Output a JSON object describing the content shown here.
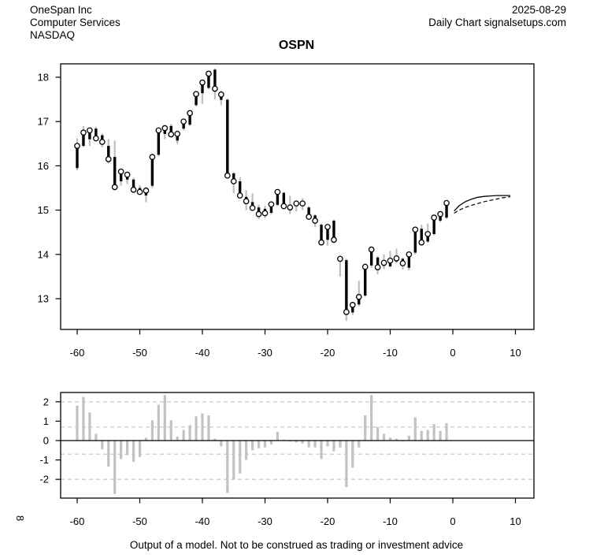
{
  "header": {
    "company": "OneSpan Inc",
    "industry": "Computer Services",
    "exchange": "NASDAQ",
    "date": "2025-08-29",
    "chart_type": "Daily Chart signalsetups.com"
  },
  "title": "OSPN",
  "caption": "Output of a model. Not to be construed as trading or investment advice",
  "side_label": "8",
  "colors": {
    "bar_black": "#000000",
    "range_gray": "#bebebe",
    "oscillator_gray": "#c2c2c2",
    "grid_dash_gray": "#cccccc",
    "text": "#000000",
    "background": "#ffffff"
  },
  "chart_data": [
    {
      "type": "bar",
      "subtype": "ohlc-close-marker",
      "panel": "price",
      "title": "OSPN",
      "xlabel": "",
      "ylabel": "",
      "xlim": [
        -62.5,
        13
      ],
      "ylim": [
        12.3,
        18.3
      ],
      "x_ticks": [
        -60,
        -50,
        -40,
        -30,
        -20,
        -10,
        0,
        10
      ],
      "y_ticks": [
        13,
        14,
        15,
        16,
        17,
        18
      ],
      "grid": "off",
      "columns": [
        "t",
        "open",
        "high",
        "low",
        "close"
      ],
      "bars": [
        [
          -60,
          15.95,
          16.62,
          15.9,
          16.45
        ],
        [
          -59,
          16.45,
          16.9,
          16.42,
          16.75
        ],
        [
          -58,
          16.6,
          16.87,
          16.45,
          16.8
        ],
        [
          -57,
          16.84,
          16.88,
          16.55,
          16.62
        ],
        [
          -56,
          16.69,
          16.73,
          16.42,
          16.54
        ],
        [
          -55,
          16.45,
          16.6,
          16.05,
          16.15
        ],
        [
          -54,
          16.2,
          16.57,
          15.45,
          15.52
        ],
        [
          -53,
          15.65,
          15.92,
          15.55,
          15.87
        ],
        [
          -52,
          15.69,
          15.86,
          15.59,
          15.8
        ],
        [
          -51,
          15.69,
          15.73,
          15.4,
          15.46
        ],
        [
          -50,
          15.5,
          15.56,
          15.35,
          15.41
        ],
        [
          -49,
          15.33,
          15.52,
          15.18,
          15.44
        ],
        [
          -48,
          15.55,
          16.25,
          15.5,
          16.2
        ],
        [
          -47,
          16.25,
          16.84,
          16.22,
          16.8
        ],
        [
          -46,
          16.72,
          16.9,
          16.6,
          16.85
        ],
        [
          -45,
          16.9,
          16.94,
          16.65,
          16.71
        ],
        [
          -44,
          16.57,
          16.8,
          16.5,
          16.72
        ],
        [
          -43,
          16.84,
          17.05,
          16.8,
          17.0
        ],
        [
          -42,
          16.93,
          17.25,
          16.9,
          17.19
        ],
        [
          -41,
          17.37,
          17.67,
          17.34,
          17.62
        ],
        [
          -40,
          17.64,
          17.91,
          17.4,
          17.88
        ],
        [
          -39,
          17.76,
          18.11,
          17.73,
          18.08
        ],
        [
          -38,
          18.17,
          18.2,
          17.5,
          17.74
        ],
        [
          -37,
          17.49,
          17.7,
          17.37,
          17.61
        ],
        [
          -36,
          17.49,
          17.52,
          15.74,
          15.78
        ],
        [
          -35,
          15.83,
          15.86,
          15.38,
          15.65
        ],
        [
          -34,
          15.65,
          15.74,
          15.28,
          15.33
        ],
        [
          -33,
          15.3,
          15.45,
          15.0,
          15.2
        ],
        [
          -32,
          15.18,
          15.38,
          15.02,
          15.05
        ],
        [
          -31,
          15.06,
          15.12,
          14.79,
          14.91
        ],
        [
          -30,
          15.03,
          15.1,
          14.82,
          14.93
        ],
        [
          -29,
          14.94,
          15.18,
          14.9,
          15.13
        ],
        [
          -28,
          15.12,
          15.44,
          15.09,
          15.41
        ],
        [
          -27,
          15.39,
          15.41,
          15.06,
          15.09
        ],
        [
          -26,
          15.12,
          15.32,
          14.91,
          15.06
        ],
        [
          -25,
          15.09,
          15.21,
          14.97,
          15.15
        ],
        [
          -24,
          15.1,
          15.27,
          15.0,
          15.15
        ],
        [
          -23,
          15.06,
          15.09,
          14.79,
          14.85
        ],
        [
          -22,
          14.88,
          14.91,
          14.61,
          14.76
        ],
        [
          -21,
          14.67,
          14.7,
          14.24,
          14.27
        ],
        [
          -20,
          14.33,
          14.66,
          14.2,
          14.62
        ],
        [
          -19,
          14.76,
          14.79,
          14.26,
          14.33
        ],
        [
          -18,
          13.93,
          13.96,
          13.5,
          13.9
        ],
        [
          -17,
          13.87,
          13.9,
          12.5,
          12.7
        ],
        [
          -16,
          12.69,
          12.93,
          12.63,
          12.86
        ],
        [
          -15,
          12.87,
          13.4,
          12.83,
          13.04
        ],
        [
          -14,
          13.07,
          13.76,
          13.04,
          13.72
        ],
        [
          -13,
          13.75,
          14.17,
          13.7,
          14.11
        ],
        [
          -12,
          13.93,
          13.96,
          13.55,
          13.71
        ],
        [
          -11,
          13.74,
          14.0,
          13.67,
          13.81
        ],
        [
          -10,
          13.73,
          14.08,
          13.7,
          13.86
        ],
        [
          -9,
          13.84,
          14.13,
          13.8,
          13.91
        ],
        [
          -8,
          13.9,
          13.93,
          13.66,
          13.8
        ],
        [
          -7,
          13.7,
          14.04,
          13.64,
          14.0
        ],
        [
          -6,
          14.04,
          14.6,
          14.0,
          14.56
        ],
        [
          -5,
          14.58,
          14.67,
          14.24,
          14.27
        ],
        [
          -4,
          14.29,
          14.7,
          14.26,
          14.46
        ],
        [
          -3,
          14.46,
          14.86,
          14.43,
          14.83
        ],
        [
          -2,
          14.76,
          14.97,
          14.73,
          14.91
        ],
        [
          -1,
          14.83,
          15.19,
          14.8,
          15.16
        ]
      ],
      "forecast": {
        "solid": [
          [
            0.2,
            14.98
          ],
          [
            1,
            15.1
          ],
          [
            2,
            15.19
          ],
          [
            3,
            15.25
          ],
          [
            4,
            15.29
          ],
          [
            5,
            15.31
          ],
          [
            6,
            15.32
          ],
          [
            7,
            15.33
          ],
          [
            8,
            15.33
          ],
          [
            9.2,
            15.33
          ]
        ],
        "dashed": [
          [
            0.2,
            14.93
          ],
          [
            1,
            15.0
          ],
          [
            2,
            15.06
          ],
          [
            3,
            15.11
          ],
          [
            4,
            15.15
          ],
          [
            5,
            15.19
          ],
          [
            6,
            15.22
          ],
          [
            7,
            15.25
          ],
          [
            8,
            15.28
          ],
          [
            9.2,
            15.3
          ]
        ]
      }
    },
    {
      "type": "bar",
      "panel": "oscillator",
      "xlabel": "",
      "ylabel": "",
      "xlim": [
        -62.5,
        13
      ],
      "ylim": [
        -2.97,
        2.48
      ],
      "x_ticks": [
        -60,
        -50,
        -40,
        -30,
        -20,
        -10,
        0,
        10
      ],
      "y_ticks": [
        -2,
        -1,
        0,
        1,
        2
      ],
      "dashed_gridlines": [
        2,
        0.7,
        -0.7,
        -2
      ],
      "zero_line": 0,
      "legend": "none",
      "columns": [
        "t",
        "value"
      ],
      "values": [
        [
          -60,
          1.8
        ],
        [
          -59,
          2.25
        ],
        [
          -58,
          1.45
        ],
        [
          -57,
          0.35
        ],
        [
          -56,
          -0.45
        ],
        [
          -55,
          -1.35
        ],
        [
          -54,
          -2.75
        ],
        [
          -53,
          -0.95
        ],
        [
          -52,
          -0.75
        ],
        [
          -51,
          -1.1
        ],
        [
          -50,
          -0.85
        ],
        [
          -49,
          0.15
        ],
        [
          -48,
          1.05
        ],
        [
          -47,
          1.85
        ],
        [
          -46,
          2.35
        ],
        [
          -45,
          1.05
        ],
        [
          -44,
          0.2
        ],
        [
          -43,
          0.55
        ],
        [
          -42,
          0.8
        ],
        [
          -41,
          1.25
        ],
        [
          -40,
          1.4
        ],
        [
          -39,
          1.3
        ],
        [
          -38,
          0.1
        ],
        [
          -37,
          -0.3
        ],
        [
          -36,
          -2.7
        ],
        [
          -35,
          -2.0
        ],
        [
          -34,
          -1.7
        ],
        [
          -33,
          -1.0
        ],
        [
          -32,
          -0.5
        ],
        [
          -31,
          -0.4
        ],
        [
          -30,
          -0.35
        ],
        [
          -29,
          -0.2
        ],
        [
          -28,
          0.45
        ],
        [
          -27,
          0.05
        ],
        [
          -26,
          -0.05
        ],
        [
          -25,
          -0.1
        ],
        [
          -24,
          -0.15
        ],
        [
          -23,
          -0.35
        ],
        [
          -22,
          -0.35
        ],
        [
          -21,
          -0.95
        ],
        [
          -20,
          -0.3
        ],
        [
          -19,
          -0.55
        ],
        [
          -18,
          -0.35
        ],
        [
          -17,
          -2.4
        ],
        [
          -16,
          -1.4
        ],
        [
          -15,
          -0.35
        ],
        [
          -14,
          1.3
        ],
        [
          -13,
          2.35
        ],
        [
          -12,
          0.7
        ],
        [
          -11,
          0.35
        ],
        [
          -10,
          0.15
        ],
        [
          -9,
          0.1
        ],
        [
          -8,
          -0.05
        ],
        [
          -7,
          0.25
        ],
        [
          -6,
          1.2
        ],
        [
          -5,
          0.5
        ],
        [
          -4,
          0.55
        ],
        [
          -3,
          0.85
        ],
        [
          -2,
          0.5
        ],
        [
          -1,
          0.9
        ]
      ]
    }
  ]
}
